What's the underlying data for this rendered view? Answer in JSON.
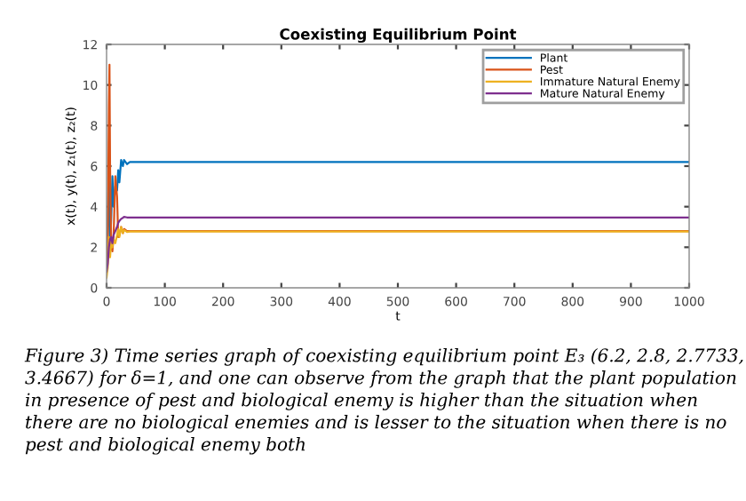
{
  "chart_data": {
    "type": "line",
    "title": "Coexisting Equilibrium Point",
    "xlabel": "t",
    "ylabel": "x(t), y(t), z₁(t), z₂(t)",
    "series": [
      {
        "name": "Plant",
        "color": "#0072bd",
        "x": [
          0,
          2,
          4,
          6,
          8,
          10,
          12,
          15,
          18,
          20,
          22,
          25,
          28,
          30,
          35,
          40,
          50,
          100,
          1000
        ],
        "values": [
          1.0,
          3.0,
          6.0,
          2.0,
          3.5,
          5.5,
          4.0,
          5.0,
          4.8,
          5.8,
          5.2,
          6.3,
          6.0,
          6.3,
          6.1,
          6.2,
          6.2,
          6.2,
          6.2
        ]
      },
      {
        "name": "Pest",
        "color": "#d95319",
        "x": [
          0,
          2,
          4,
          5,
          6,
          8,
          10,
          12,
          15,
          18,
          20,
          22,
          25,
          28,
          30,
          35,
          40,
          50,
          100,
          1000
        ],
        "values": [
          0.8,
          2.0,
          9.0,
          11.0,
          6.0,
          2.0,
          1.8,
          2.5,
          5.5,
          4.5,
          2.5,
          2.6,
          3.0,
          2.7,
          2.9,
          2.8,
          2.8,
          2.8,
          2.8,
          2.8
        ]
      },
      {
        "name": "Immature Natural Enemy",
        "color": "#edb120",
        "x": [
          0,
          2,
          4,
          6,
          8,
          10,
          12,
          15,
          18,
          20,
          22,
          25,
          28,
          30,
          35,
          40,
          50,
          100,
          1000
        ],
        "values": [
          0.5,
          1.0,
          2.5,
          1.5,
          2.3,
          2.0,
          2.4,
          2.2,
          2.6,
          2.9,
          2.5,
          3.0,
          2.7,
          2.85,
          2.75,
          2.7733,
          2.7733,
          2.7733,
          2.7733
        ]
      },
      {
        "name": "Mature Natural Enemy",
        "color": "#7e2f8e",
        "x": [
          0,
          2,
          4,
          6,
          8,
          10,
          12,
          15,
          18,
          20,
          22,
          25,
          28,
          30,
          35,
          40,
          50,
          100,
          1000
        ],
        "values": [
          0.8,
          1.2,
          2.0,
          2.4,
          2.5,
          2.2,
          2.6,
          2.8,
          3.0,
          3.2,
          3.3,
          3.4,
          3.45,
          3.5,
          3.47,
          3.4667,
          3.4667,
          3.4667,
          3.4667
        ]
      }
    ],
    "xlim": [
      0,
      1000
    ],
    "xticks": [
      0,
      100,
      200,
      300,
      400,
      500,
      600,
      700,
      800,
      900,
      1000
    ],
    "ylim": [
      0,
      12
    ],
    "yticks": [
      0,
      2,
      4,
      6,
      8,
      10,
      12
    ],
    "legend": "top right",
    "grid": false,
    "annotations": [
      "Figure 3) Time series graph of coexisting equilibrium point E₃ (6.2, 2.8, 2.7733, 3.4667) for δ=1, and one can observe from the graph that the plant population in presence of pest and biological enemy is higher than the situation when there are no biological enemies and is lesser to the situation when there is no pest and biological enemy both"
    ]
  }
}
